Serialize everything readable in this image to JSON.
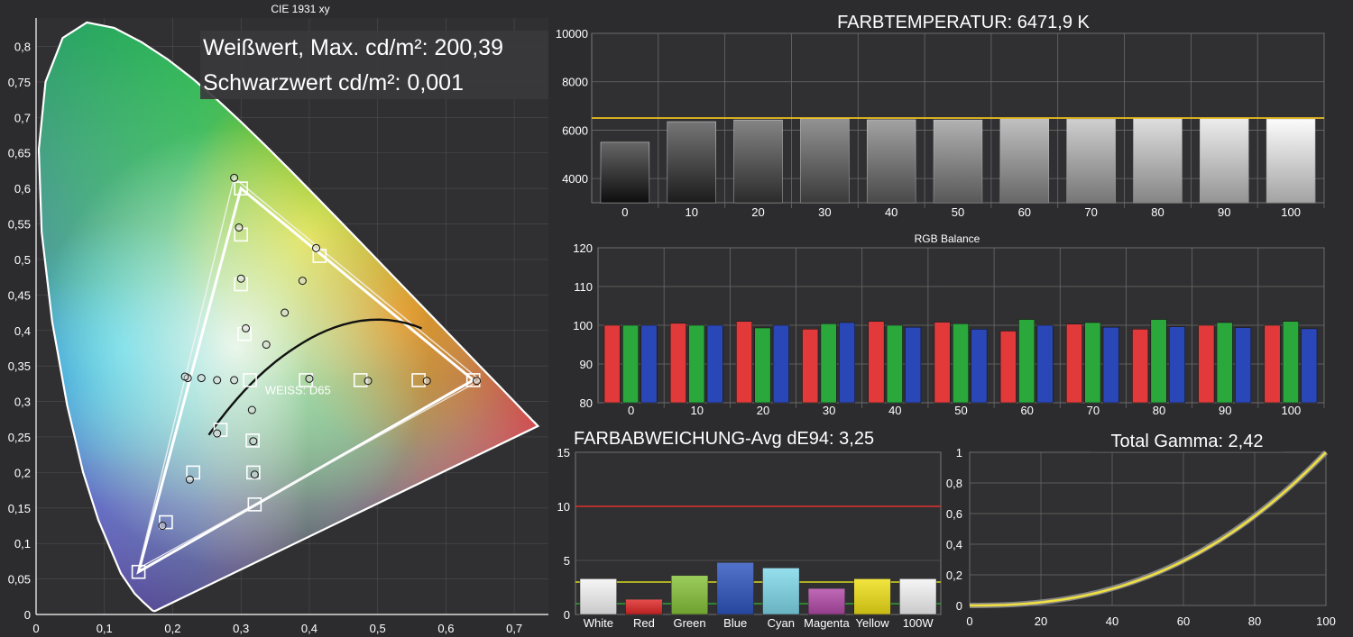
{
  "colors": {
    "background": "#2c2c2e",
    "panel": "#303032",
    "grid": "#6a6a6a",
    "measured_line": "#f0c020",
    "limit_line_red": "#e03030",
    "limit_line_yellow": "#d8d820",
    "limit_line_green": "#30a030",
    "gamma_curve": "#f0e040",
    "gamma_reference": "#a0a0a0",
    "rgb_red": "#e23a3a",
    "rgb_green": "#2aa83c",
    "rgb_blue": "#2a47b8"
  },
  "chart_data": [
    {
      "type": "scatter",
      "id": "cie",
      "title": "CIE 1931 xy",
      "annotations": [
        "Weißwert, Max. cd/m²: 200,39",
        "Schwarzwert cd/m²: 0,001"
      ],
      "whitepoint_label": "WEISS: D65",
      "xlim": [
        0,
        0.75
      ],
      "ylim": [
        0,
        0.84
      ],
      "x_ticks": [
        "0",
        "0,1",
        "0,2",
        "0,3",
        "0,4",
        "0,5",
        "0,6",
        "0,7"
      ],
      "y_ticks": [
        "0",
        "0,05",
        "0,1",
        "0,15",
        "0,2",
        "0,25",
        "0,3",
        "0,35",
        "0,4",
        "0,45",
        "0,5",
        "0,55",
        "0,6",
        "0,65",
        "0,7",
        "0,75",
        "0,8"
      ],
      "target_gamut": [
        [
          0.64,
          0.33
        ],
        [
          0.3,
          0.6
        ],
        [
          0.15,
          0.06
        ]
      ],
      "measured_gamut": [
        [
          0.65,
          0.33
        ],
        [
          0.29,
          0.615
        ],
        [
          0.15,
          0.065
        ]
      ],
      "target_points": [
        [
          0.64,
          0.33
        ],
        [
          0.56,
          0.33
        ],
        [
          0.475,
          0.33
        ],
        [
          0.395,
          0.33
        ],
        [
          0.3,
          0.6
        ],
        [
          0.3,
          0.535
        ],
        [
          0.3,
          0.465
        ],
        [
          0.305,
          0.395
        ],
        [
          0.415,
          0.505
        ],
        [
          0.313,
          0.33
        ],
        [
          0.15,
          0.06
        ],
        [
          0.19,
          0.13
        ],
        [
          0.23,
          0.2
        ],
        [
          0.27,
          0.26
        ],
        [
          0.32,
          0.155
        ],
        [
          0.318,
          0.2
        ],
        [
          0.317,
          0.245
        ]
      ],
      "measured_points": [
        [
          0.645,
          0.329
        ],
        [
          0.572,
          0.329
        ],
        [
          0.486,
          0.329
        ],
        [
          0.4,
          0.332
        ],
        [
          0.29,
          0.615
        ],
        [
          0.297,
          0.545
        ],
        [
          0.3,
          0.473
        ],
        [
          0.307,
          0.403
        ],
        [
          0.41,
          0.516
        ],
        [
          0.39,
          0.47
        ],
        [
          0.364,
          0.425
        ],
        [
          0.337,
          0.38
        ],
        [
          0.29,
          0.33
        ],
        [
          0.265,
          0.33
        ],
        [
          0.242,
          0.333
        ],
        [
          0.222,
          0.333
        ],
        [
          0.218,
          0.335
        ],
        [
          0.265,
          0.255
        ],
        [
          0.225,
          0.19
        ],
        [
          0.185,
          0.125
        ],
        [
          0.316,
          0.288
        ],
        [
          0.318,
          0.244
        ],
        [
          0.32,
          0.197
        ]
      ]
    },
    {
      "type": "bar",
      "id": "cct",
      "title": "FARBTEMPERATUR: 6471,9 K",
      "categories": [
        "0",
        "10",
        "20",
        "30",
        "40",
        "50",
        "60",
        "70",
        "80",
        "90",
        "100"
      ],
      "values": [
        5500,
        6350,
        6420,
        6480,
        6430,
        6420,
        6460,
        6450,
        6470,
        6470,
        6460
      ],
      "target": 6500,
      "ylim": [
        3000,
        10000
      ],
      "y_ticks": [
        "4000",
        "6000",
        "8000",
        "10000"
      ]
    },
    {
      "type": "bar",
      "id": "rgb",
      "title": "RGB Balance",
      "categories": [
        "0",
        "10",
        "20",
        "30",
        "40",
        "50",
        "60",
        "70",
        "80",
        "90",
        "100"
      ],
      "series": [
        {
          "values": [
            100,
            100.5,
            101,
            99,
            101,
            100.8,
            98.5,
            100.3,
            99,
            100,
            100
          ]
        },
        {
          "values": [
            100,
            100,
            99.3,
            100.4,
            100,
            100.4,
            101.5,
            100.7,
            101.5,
            100.7,
            101
          ]
        },
        {
          "values": [
            100,
            100,
            100,
            100.7,
            99.5,
            99,
            100,
            99.5,
            99.6,
            99.4,
            99.1
          ]
        }
      ],
      "ylim": [
        80,
        120
      ],
      "y_ticks": [
        "80",
        "90",
        "100",
        "110",
        "120"
      ]
    },
    {
      "type": "bar",
      "id": "de",
      "title": "FARBABWEICHUNG-Avg dE94: 3,25",
      "categories": [
        "White",
        "Red",
        "Green",
        "Blue",
        "Cyan",
        "Magenta",
        "Yellow",
        "100W"
      ],
      "values": [
        3.3,
        1.4,
        3.6,
        4.8,
        4.3,
        2.4,
        3.3,
        3.3
      ],
      "bar_colors": [
        "#f4f4f4",
        "#e02828",
        "#86c23a",
        "#2e55c0",
        "#7fd8ea",
        "#b24aa8",
        "#f0e018",
        "#f4f4f4"
      ],
      "limits": [
        10,
        3,
        1
      ],
      "ylim": [
        0,
        15
      ],
      "y_ticks": [
        "0",
        "5",
        "10",
        "15"
      ]
    },
    {
      "type": "line",
      "id": "gamma",
      "title": "Total Gamma: 2,42",
      "xlim": [
        0,
        100
      ],
      "ylim": [
        0,
        1
      ],
      "x_ticks": [
        "0",
        "20",
        "40",
        "60",
        "80",
        "100"
      ],
      "y_ticks": [
        "0",
        "0,2",
        "0,4",
        "0,6",
        "0,8",
        "1"
      ],
      "measured_gamma": 2.42,
      "reference_gamma": 2.4
    }
  ]
}
